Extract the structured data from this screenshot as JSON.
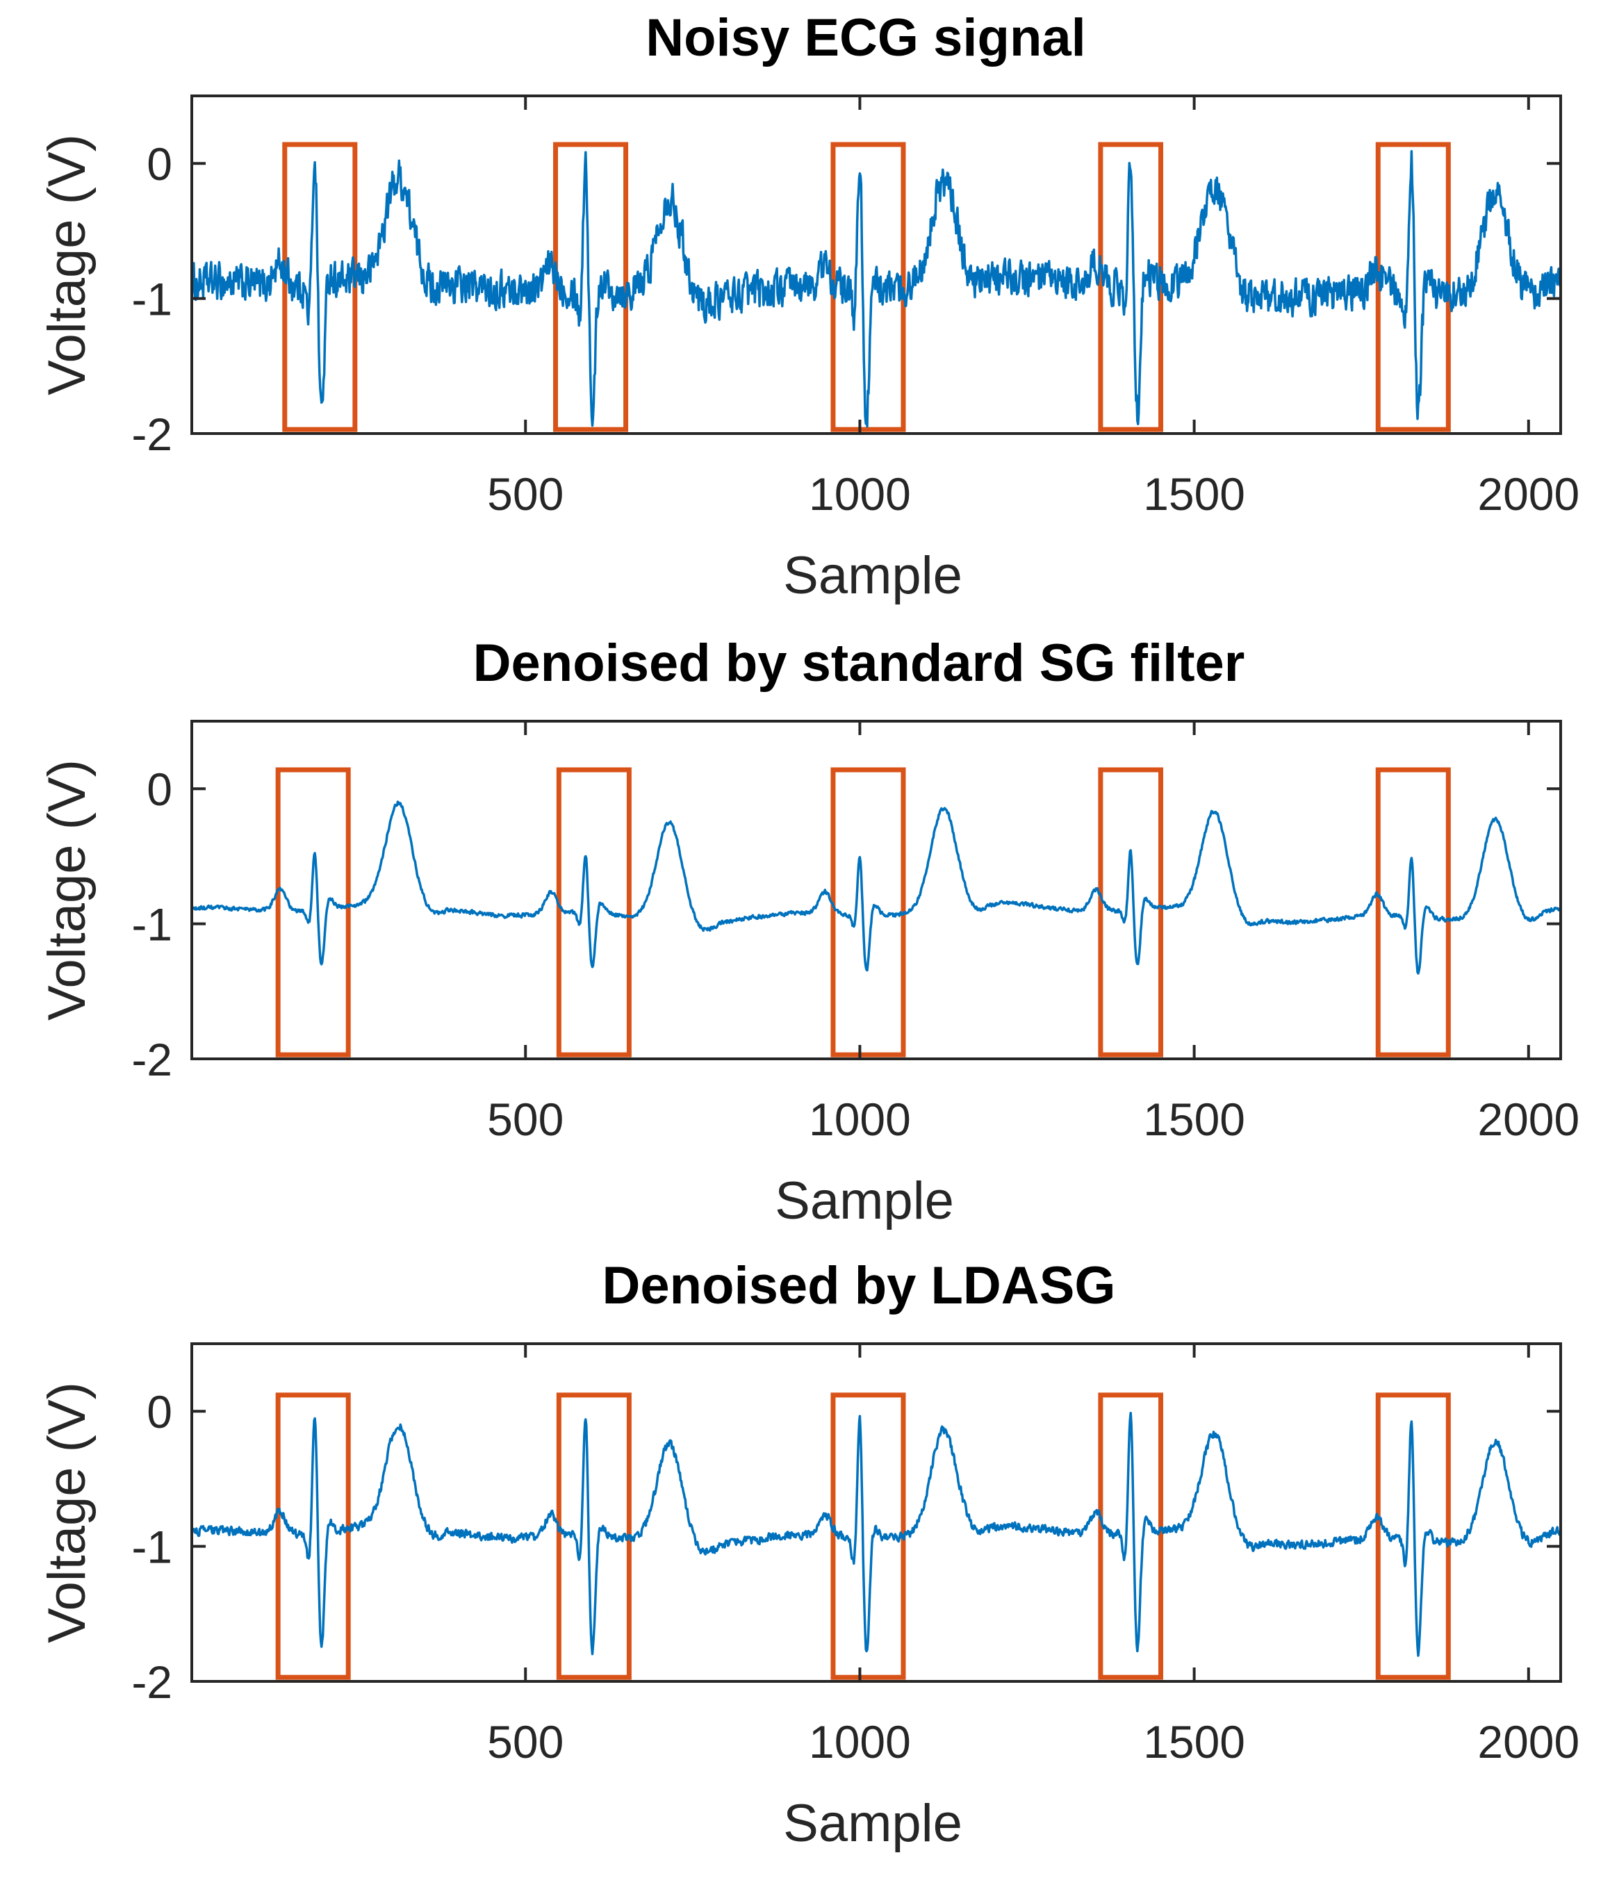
{
  "chart_data": [
    {
      "type": "line",
      "title": "Noisy ECG signal",
      "xlabel": "Sample",
      "ylabel": "Voltage (V)",
      "xlim": [
        1,
        2048
      ],
      "ylim": [
        -2,
        0.5
      ],
      "xticks": [
        500,
        1000,
        1500,
        2000
      ],
      "xtick_labels": [
        "500",
        "1000",
        "1500",
        "2000"
      ],
      "yticks": [
        0,
        -1,
        -2
      ],
      "ytick_labels": [
        "0",
        "-1",
        "-2"
      ],
      "series": [
        {
          "name": "Noisy ECG",
          "color": "#0072BD",
          "noise": 0.11,
          "qrs_peak_scale": 1.0
        }
      ],
      "highlight_boxes": {
        "color": "#D95319",
        "ranges": [
          [
            140,
            245
          ],
          [
            545,
            650
          ],
          [
            960,
            1065
          ],
          [
            1360,
            1450
          ],
          [
            1775,
            1880
          ]
        ],
        "y_range": [
          -1.97,
          0.14
        ]
      },
      "beat_r_samples": [
        185,
        590,
        1000,
        1405,
        1825
      ]
    },
    {
      "type": "line",
      "title": "Denoised by standard SG filter",
      "xlabel": "Sample",
      "ylabel": "Voltage (V)",
      "xlim": [
        1,
        2048
      ],
      "ylim": [
        -2,
        0.5
      ],
      "xticks": [
        500,
        1000,
        1500,
        2000
      ],
      "xtick_labels": [
        "500",
        "1000",
        "1500",
        "2000"
      ],
      "yticks": [
        0,
        -1,
        -2
      ],
      "ytick_labels": [
        "0",
        "-1",
        "-2"
      ],
      "series": [
        {
          "name": "SG filter",
          "color": "#0072BD",
          "noise": 0.012,
          "qrs_peak_scale": 0.45
        }
      ],
      "highlight_boxes": {
        "color": "#D95319",
        "ranges": [
          [
            130,
            235
          ],
          [
            550,
            655
          ],
          [
            960,
            1065
          ],
          [
            1360,
            1450
          ],
          [
            1775,
            1880
          ]
        ],
        "y_range": [
          -1.97,
          0.14
        ]
      },
      "beat_r_samples": [
        185,
        590,
        1000,
        1405,
        1825
      ]
    },
    {
      "type": "line",
      "title": "Denoised by LDASG",
      "xlabel": "Sample",
      "ylabel": "Voltage (V)",
      "xlim": [
        1,
        2048
      ],
      "ylim": [
        -2,
        0.5
      ],
      "xticks": [
        500,
        1000,
        1500,
        2000
      ],
      "xtick_labels": [
        "500",
        "1000",
        "1500",
        "2000"
      ],
      "yticks": [
        0,
        -1,
        -2
      ],
      "ytick_labels": [
        "0",
        "-1",
        "-2"
      ],
      "series": [
        {
          "name": "LDASG",
          "color": "#0072BD",
          "noise": 0.025,
          "qrs_peak_scale": 0.92
        }
      ],
      "highlight_boxes": {
        "color": "#D95319",
        "ranges": [
          [
            130,
            235
          ],
          [
            550,
            655
          ],
          [
            960,
            1065
          ],
          [
            1360,
            1450
          ],
          [
            1775,
            1880
          ]
        ],
        "y_range": [
          -1.97,
          0.12
        ]
      },
      "beat_r_samples": [
        185,
        590,
        1000,
        1405,
        1825
      ]
    }
  ]
}
